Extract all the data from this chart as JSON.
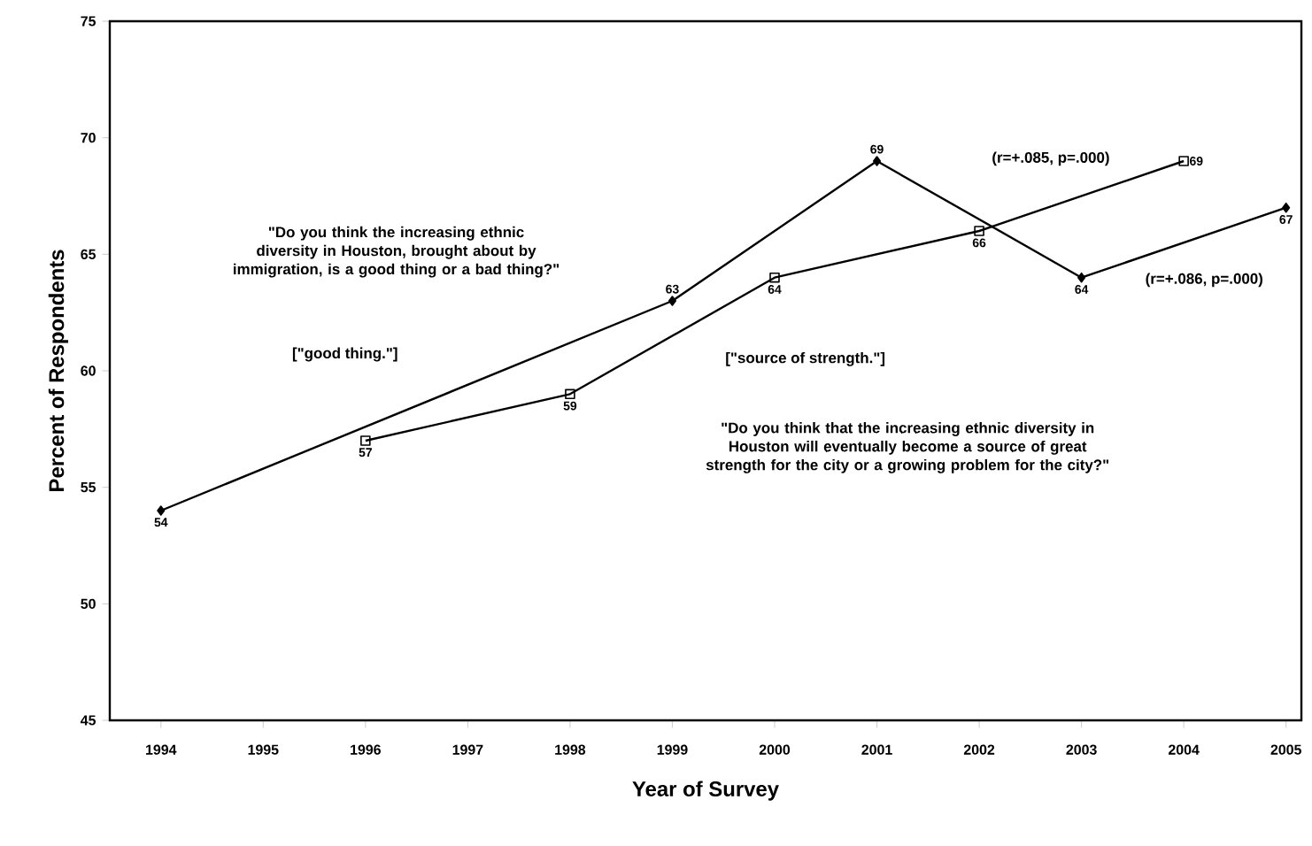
{
  "chart_data": {
    "type": "line",
    "xlabel": "Year of Survey",
    "ylabel": "Percent of Respondents",
    "series": [
      {
        "color": "#000000",
        "marker": "diamond",
        "x": [
          1994,
          1999,
          2001,
          2003,
          2005
        ],
        "values": [
          54,
          63,
          69,
          64,
          67
        ]
      },
      {
        "color": "#000000",
        "marker": "square",
        "x": [
          1996,
          1998,
          2000,
          2002,
          2004
        ],
        "values": [
          57,
          59,
          64,
          66,
          69
        ]
      }
    ],
    "xlim": [
      1993.5,
      2005.15
    ],
    "ylim": [
      45,
      75
    ],
    "xticks": [
      1994,
      1995,
      1996,
      1997,
      1998,
      1999,
      2000,
      2001,
      2002,
      2003,
      2004,
      2005
    ],
    "yticks": [
      45,
      50,
      55,
      60,
      65,
      70,
      75
    ],
    "data_labels": true,
    "grid": false,
    "line_style": "solid",
    "annotations": [
      "\"Do you think the increasing ethnic diversity in Houston, brought about by immigration, is a good thing or a bad thing?\"",
      "[\"good thing.\"]",
      "[\"source of strength.\"]",
      "\"Do you think that the increasing ethnic diversity in Houston will eventually become a source of great strength for the city or a growing problem for the city?\"",
      "(r=+.085, p=.000)",
      "(r=+.086, p=.000)"
    ]
  }
}
